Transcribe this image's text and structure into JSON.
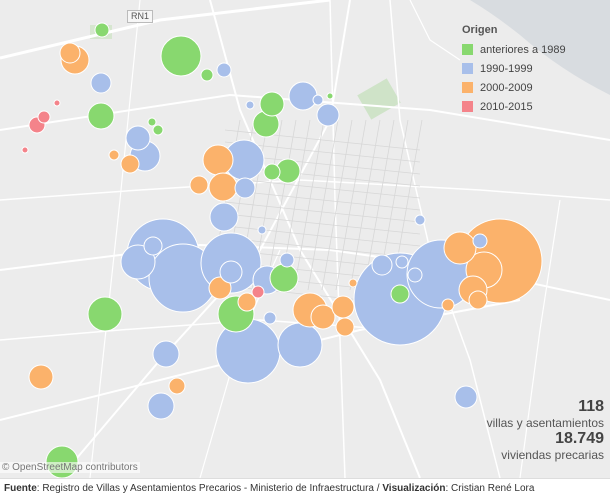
{
  "route_label": "RN1",
  "legend": {
    "title": "Origen",
    "items": [
      {
        "label": "anteriores a 1989",
        "color": "#88d86f"
      },
      {
        "label": "1990-1999",
        "color": "#a8bfea"
      },
      {
        "label": "2000-2009",
        "color": "#fbb26b"
      },
      {
        "label": "2010-2015",
        "color": "#f4838a"
      }
    ]
  },
  "stats": {
    "count": "118",
    "count_label": "villas y asentamientos",
    "homes": "18.749",
    "homes_label": "viviendas precarias"
  },
  "attribution": "© OpenStreetMap contributors",
  "footer": {
    "source_label": "Fuente",
    "source_text": ": Registro de Villas y Asentamientos Precarios - Ministerio de Infraestructura  /  ",
    "viz_label": "Visualización",
    "viz_text": ": Cristian René Lora"
  }
}
